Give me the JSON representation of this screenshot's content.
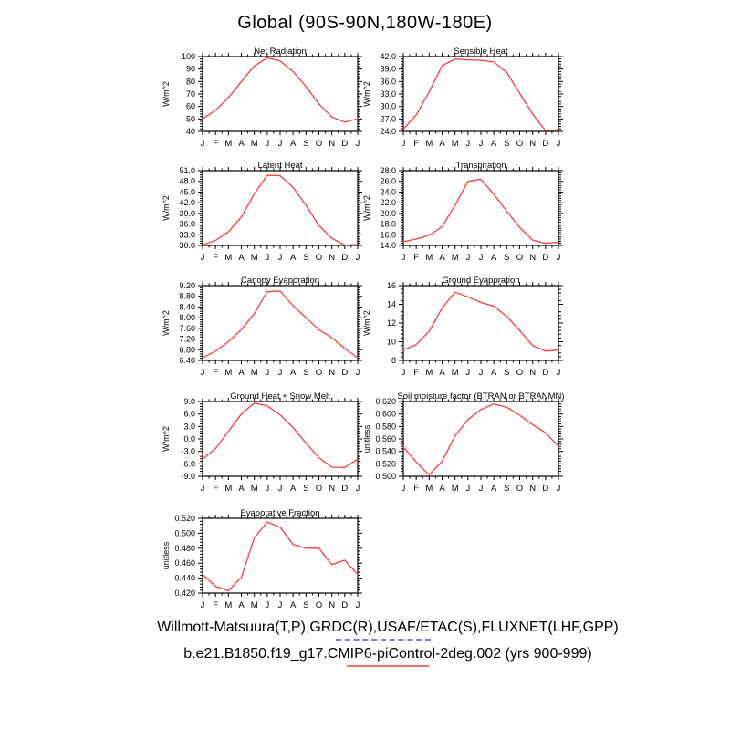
{
  "page_title": "Global (90S-90N,180W-180E)",
  "months": [
    "J",
    "F",
    "M",
    "A",
    "M",
    "J",
    "J",
    "A",
    "S",
    "O",
    "N",
    "D",
    "J"
  ],
  "line_color": "#fb3b3b",
  "footer": {
    "obs_label": "Willmott-Matsuura(T,P),GRDC(R),USAF/ETAC(S),FLUXNET(LHF,GPP)",
    "obs_line_color": "#7d7de1",
    "obs_line_style": "dashed",
    "model_label": "b.e21.B1850.f19_g17.CMIP6-piControl-2deg.002 (yrs 900-999)",
    "model_line_color": "#ef7163",
    "model_line_style": "solid"
  },
  "chart_data": [
    {
      "type": "line",
      "title": "Net Radiation",
      "ylabel": "W/m^2",
      "ylim": [
        40,
        100
      ],
      "ytick_values": [
        40,
        50,
        60,
        70,
        80,
        90,
        100
      ],
      "ytick_labels": [
        "40",
        "50",
        "60",
        "70",
        "80",
        "90",
        "100"
      ],
      "values": [
        50,
        57,
        67,
        80,
        92.5,
        99,
        96.5,
        88,
        76,
        62,
        51.5,
        47.5,
        50
      ]
    },
    {
      "type": "line",
      "title": "Sensible Heat",
      "ylabel": "W/m^2",
      "ylim": [
        24,
        42
      ],
      "ytick_values": [
        24,
        27,
        30,
        33,
        36,
        39,
        42
      ],
      "ytick_labels": [
        "24.0",
        "27.0",
        "30.0",
        "33.0",
        "36.0",
        "39.0",
        "42.0"
      ],
      "values": [
        24.5,
        28.0,
        33.5,
        39.8,
        41.4,
        41.2,
        41.1,
        40.7,
        38.2,
        33.2,
        28.2,
        24.2,
        24.4
      ]
    },
    {
      "type": "line",
      "title": "Latent Heat",
      "ylabel": "W/m^2",
      "ylim": [
        30,
        51
      ],
      "ytick_values": [
        30,
        33,
        36,
        39,
        42,
        45,
        48,
        51
      ],
      "ytick_labels": [
        "30.0",
        "33.0",
        "36.0",
        "39.0",
        "42.0",
        "45.0",
        "48.0",
        "51.0"
      ],
      "values": [
        30.2,
        31.4,
        33.8,
        38.0,
        44.5,
        49.7,
        49.6,
        46.3,
        41.3,
        35.6,
        32.0,
        30.1,
        30.2
      ]
    },
    {
      "type": "line",
      "title": "Transpiration",
      "ylabel": "W/m^2",
      "ylim": [
        14,
        28
      ],
      "ytick_values": [
        14,
        16,
        18,
        20,
        22,
        24,
        26,
        28
      ],
      "ytick_labels": [
        "14.0",
        "16.0",
        "18.0",
        "20.0",
        "22.0",
        "24.0",
        "26.0",
        "28.0"
      ],
      "values": [
        14.7,
        15.2,
        15.9,
        17.5,
        21.5,
        26.0,
        26.4,
        23.6,
        20.4,
        17.4,
        15.0,
        14.4,
        14.6
      ]
    },
    {
      "type": "line",
      "title": "Canopy Evaporation",
      "ylabel": "W/m^2",
      "ylim": [
        6.4,
        9.2
      ],
      "ytick_values": [
        6.4,
        6.8,
        7.2,
        7.6,
        8.0,
        8.4,
        8.8,
        9.2
      ],
      "ytick_labels": [
        "6.40",
        "6.80",
        "7.20",
        "7.60",
        "8.00",
        "8.40",
        "8.80",
        "9.20"
      ],
      "values": [
        6.5,
        6.75,
        7.1,
        7.55,
        8.15,
        8.97,
        9.0,
        8.45,
        8.0,
        7.55,
        7.25,
        6.85,
        6.5
      ]
    },
    {
      "type": "line",
      "title": "Ground Evaporation",
      "ylabel": "W/m^2",
      "ylim": [
        8,
        16
      ],
      "ytick_values": [
        8,
        10,
        12,
        14,
        16
      ],
      "ytick_labels": [
        "8",
        "10",
        "12",
        "14",
        "16"
      ],
      "values": [
        9.1,
        9.7,
        11.1,
        13.6,
        15.3,
        14.8,
        14.2,
        13.8,
        12.7,
        11.2,
        9.6,
        9.0,
        9.1
      ]
    },
    {
      "type": "line",
      "title": "Ground Heat + Snow Melt",
      "ylabel": "W/m^2",
      "ylim": [
        -9,
        9
      ],
      "ytick_values": [
        -9,
        -6,
        -3,
        0,
        3,
        6,
        9
      ],
      "ytick_labels": [
        "-9.0",
        "-6.0",
        "-3.0",
        "0.0",
        "3.0",
        "6.0",
        "9.0"
      ],
      "values": [
        -4.9,
        -2.3,
        1.8,
        6.0,
        8.6,
        8.0,
        5.8,
        2.7,
        -1.0,
        -4.5,
        -6.8,
        -6.9,
        -4.9
      ]
    },
    {
      "type": "line",
      "title": "Soil moisture factor (BTRAN or BTRANMN)",
      "ylabel": "unitless",
      "ylim": [
        0.5,
        0.62
      ],
      "ytick_values": [
        0.5,
        0.52,
        0.54,
        0.56,
        0.58,
        0.6,
        0.62
      ],
      "ytick_labels": [
        "0.500",
        "0.520",
        "0.540",
        "0.560",
        "0.580",
        "0.600",
        "0.620"
      ],
      "values": [
        0.547,
        0.523,
        0.502,
        0.524,
        0.565,
        0.591,
        0.607,
        0.616,
        0.611,
        0.598,
        0.583,
        0.57,
        0.548
      ]
    },
    {
      "type": "line",
      "title": "Evaporative Fraction",
      "ylabel": "unitless",
      "ylim": [
        0.42,
        0.52
      ],
      "ytick_values": [
        0.42,
        0.44,
        0.46,
        0.48,
        0.5,
        0.52
      ],
      "ytick_labels": [
        "0.420",
        "0.440",
        "0.460",
        "0.480",
        "0.500",
        "0.520"
      ],
      "values": [
        0.445,
        0.429,
        0.423,
        0.441,
        0.494,
        0.515,
        0.508,
        0.485,
        0.48,
        0.48,
        0.458,
        0.464,
        0.445
      ]
    }
  ]
}
